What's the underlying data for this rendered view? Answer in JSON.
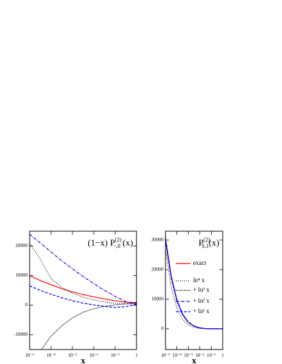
{
  "chart_data": [
    {
      "type": "line",
      "title": {
        "pre": "(1−x) P",
        "sub": "−,0",
        "sup": "(2)",
        "tail": " (x)"
      },
      "x_label": "x",
      "xscale": "log",
      "x": [
        1e-05,
        3.16e-05,
        0.0001,
        0.000316,
        0.001,
        0.00316,
        0.01,
        0.0316,
        0.1,
        0.316,
        1
      ],
      "xlim": [
        1e-05,
        1
      ],
      "xticks": [
        {
          "value": 1e-05,
          "label": "10⁻⁵"
        },
        {
          "value": 0.0001,
          "label": "10⁻⁴"
        },
        {
          "value": 0.001,
          "label": "10⁻³"
        },
        {
          "value": 0.01,
          "label": "10⁻²"
        },
        {
          "value": 0.1,
          "label": "10⁻¹"
        },
        1
      ],
      "ylim": [
        -15000,
        25000
      ],
      "yticks": [
        -10000,
        0,
        10000,
        20000
      ],
      "series": [
        {
          "color": "#ff0000",
          "dash": "solid",
          "values": [
            10000,
            8300,
            6900,
            5600,
            4500,
            3600,
            2800,
            2100,
            1500,
            1000,
            900
          ]
        },
        {
          "color": "#000000",
          "dash": "dotted",
          "values": [
            21000,
            15500,
            9000,
            6000,
            4000,
            2700,
            1800,
            1100,
            600,
            400,
            600
          ]
        },
        {
          "color": "#000000",
          "dash": "dense-dotted",
          "values": [
            null,
            -15500,
            -10500,
            -7000,
            -4300,
            -2400,
            -1200,
            -400,
            100,
            500,
            700
          ]
        },
        {
          "color": "#0000ff",
          "dash": "dash-dot",
          "values": [
            24000,
            21000,
            18000,
            15000,
            12300,
            9700,
            7300,
            5000,
            3000,
            1200,
            300
          ]
        },
        {
          "color": "#0000ff",
          "dash": "dashed",
          "values": [
            6500,
            5000,
            3700,
            2500,
            1500,
            700,
            100,
            -400,
            -800,
            -500,
            300
          ]
        }
      ]
    },
    {
      "type": "line",
      "title": {
        "pre": "P",
        "sub": "S,1",
        "sup": "(2)",
        "tail": "(x)"
      },
      "x_label": "x",
      "xscale": "log",
      "legend": "upper right",
      "x": [
        1e-05,
        3.16e-05,
        0.0001,
        0.000316,
        0.001,
        0.00316,
        0.01,
        0.0316,
        0.1,
        0.316,
        1
      ],
      "xlim": [
        1e-05,
        1
      ],
      "xticks": [
        {
          "value": 1e-05,
          "label": "10⁻⁵"
        },
        {
          "value": 0.0001,
          "label": "10⁻⁴"
        },
        {
          "value": 0.001,
          "label": "10⁻³"
        },
        {
          "value": 0.01,
          "label": "10⁻²"
        },
        {
          "value": 0.1,
          "label": "10⁻¹"
        },
        1
      ],
      "ylim": [
        -7000,
        33000
      ],
      "yticks": [
        0,
        10000,
        20000,
        30000
      ],
      "series": [
        {
          "name": "exact",
          "color": "#ff0000",
          "dash": "solid",
          "values": [
            30000,
            17500,
            9500,
            4800,
            2200,
            900,
            300,
            80,
            20,
            0,
            0
          ]
        },
        {
          "name": "ln⁴ x",
          "color": "#000000",
          "dash": "dotted",
          "values": [
            27000,
            14000,
            7000,
            3200,
            1300,
            450,
            120,
            20,
            0,
            0,
            0
          ]
        },
        {
          "name": "+ ln³ x",
          "color": "#000000",
          "dash": "dense-dotted",
          "values": [
            31000,
            18000,
            9800,
            5000,
            2300,
            950,
            320,
            80,
            10,
            0,
            0
          ]
        },
        {
          "name": "+ ln² x",
          "color": "#0000ff",
          "dash": "dash-dot",
          "values": [
            30500,
            17800,
            9700,
            4900,
            2250,
            920,
            310,
            80,
            15,
            0,
            0
          ]
        },
        {
          "name": "+ ln¹ x",
          "color": "#0000ff",
          "dash": "dashed",
          "values": [
            29800,
            17300,
            9400,
            4700,
            2150,
            880,
            290,
            75,
            15,
            0,
            0
          ]
        }
      ]
    }
  ]
}
